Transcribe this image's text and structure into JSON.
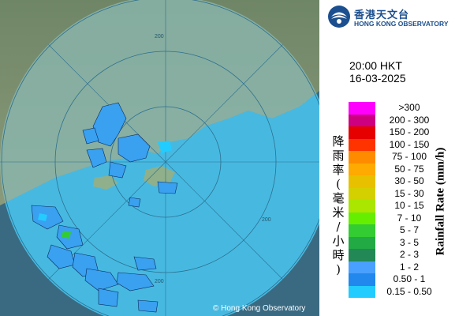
{
  "header": {
    "org_cn": "香港天文台",
    "org_en": "HONG KONG OBSERVATORY"
  },
  "timestamp": {
    "time": "20:00 HKT",
    "date": "16-03-2025"
  },
  "legend": {
    "title_cn": "降雨率(毫米/小時)",
    "title_en": "Rainfall Rate (mm/h)",
    "items": [
      {
        "label": ">300",
        "color": "#ff00ff"
      },
      {
        "label": "200 - 300",
        "color": "#cc0080"
      },
      {
        "label": "150 - 200",
        "color": "#e60000"
      },
      {
        "label": "100 - 150",
        "color": "#ff3300"
      },
      {
        "label": "75 - 100",
        "color": "#ff8c00"
      },
      {
        "label": "50 - 75",
        "color": "#ffaa00"
      },
      {
        "label": "30 - 50",
        "color": "#e8c000"
      },
      {
        "label": "15 - 30",
        "color": "#d4d000"
      },
      {
        "label": "10 - 15",
        "color": "#aae600"
      },
      {
        "label": "7 - 10",
        "color": "#66ee00"
      },
      {
        "label": "5 - 7",
        "color": "#33cc33"
      },
      {
        "label": "3 - 5",
        "color": "#22aa44"
      },
      {
        "label": "2 - 3",
        "color": "#228855"
      },
      {
        "label": "1 - 2",
        "color": "#4aa0ff"
      },
      {
        "label": "0.50 - 1",
        "color": "#2288ee"
      },
      {
        "label": "0.15 - 0.50",
        "color": "#22ccff"
      }
    ]
  },
  "map": {
    "range_label": "200",
    "copyright": "© Hong Kong Observatory",
    "colors": {
      "sea": "#3f6f86",
      "land": "#7d8f74",
      "radar_disc": "#5bc3e6"
    }
  }
}
